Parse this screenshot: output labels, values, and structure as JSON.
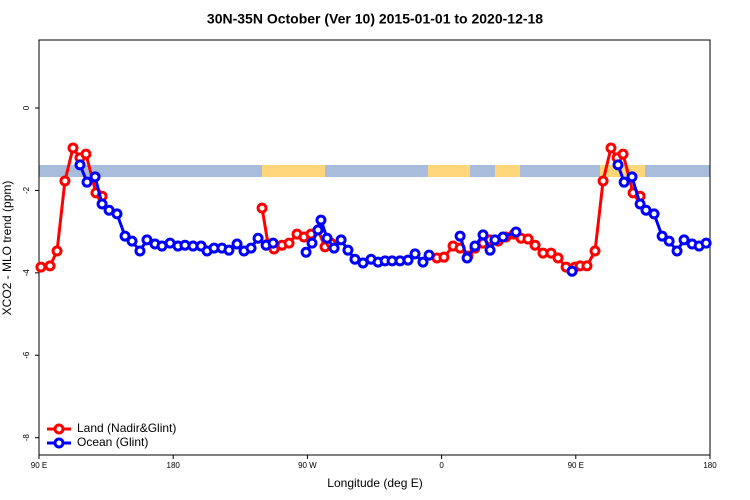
{
  "chart_data": {
    "type": "line",
    "title": "30N-35N October (Ver 10)   2015-01-01 to 2020-12-18",
    "xlabel": "Longitude (deg E)",
    "ylabel": "XCO2 - MLO trend (ppm)",
    "xlim": [
      90,
      540
    ],
    "ylim": [
      -8.42,
      1.65
    ],
    "xticks": [
      {
        "value": 90,
        "label": "90 E"
      },
      180,
      {
        "value": 270,
        "label": "90 W"
      },
      {
        "value": 360,
        "label": "0"
      },
      {
        "value": 450,
        "label": "90 E"
      },
      {
        "value": 540,
        "label": "180"
      }
    ],
    "yticks": [
      0,
      -2,
      -4,
      -6,
      -8
    ],
    "legend": "bottom-left",
    "series": [
      {
        "name": "Land (Nadir&Glint)",
        "color": "#ff0000",
        "x": [
          91.3,
          97.4,
          102.1,
          107.4,
          112.8,
          117.5,
          121.5,
          128.2,
          132.3,
          null,
          239.6,
          243.6,
          247.6,
          253.0,
          257.7,
          263.0,
          267.7,
          272.4,
          277.1,
          281.8,
          285.8,
          null,
          356.9,
          361.6,
          367.7,
          372.4,
          377.7,
          382.4,
          387.8,
          392.5,
          397.9,
          403.2,
          408.6,
          413.3,
          418.0,
          422.7,
          428.0,
          433.4,
          438.1,
          443.5,
          449.5,
          452.9,
          457.5,
          462.9,
          468.3,
          473.6,
          477.7,
          481.7,
          488.4,
          493.1
        ],
        "values": [
          -3.86,
          -3.83,
          -3.47,
          -1.77,
          -0.97,
          -1.21,
          -1.12,
          -2.06,
          -2.14,
          null,
          -2.43,
          -3.3,
          -3.42,
          -3.33,
          -3.28,
          -3.06,
          -3.13,
          -3.06,
          -2.96,
          -3.37,
          -3.28,
          null,
          -3.64,
          -3.62,
          -3.35,
          -3.4,
          -3.59,
          -3.4,
          -3.28,
          -3.2,
          -3.23,
          -3.13,
          -3.06,
          -3.16,
          -3.18,
          -3.33,
          -3.52,
          -3.52,
          -3.64,
          -3.86,
          -3.86,
          -3.83,
          -3.83,
          -3.47,
          -1.77,
          -0.97,
          -1.21,
          -1.12,
          -2.06,
          -2.14
        ]
      },
      {
        "name": "Ocean (Glint)",
        "color": "#0000ff",
        "x": [
          117.5,
          122.2,
          127.6,
          132.3,
          137.0,
          142.3,
          147.7,
          152.4,
          157.7,
          162.4,
          167.8,
          172.5,
          177.9,
          183.2,
          187.9,
          193.3,
          198.7,
          202.7,
          207.4,
          212.7,
          217.4,
          222.8,
          227.5,
          232.2,
          236.9,
          242.3,
          247.0,
          null,
          269.1,
          273.1,
          277.1,
          279.1,
          283.2,
          287.9,
          292.6,
          297.2,
          301.9,
          307.3,
          312.7,
          317.4,
          322.1,
          326.8,
          332.1,
          337.5,
          342.2,
          347.5,
          351.6,
          null,
          372.4,
          377.1,
          382.4,
          387.8,
          392.5,
          395.8,
          401.2,
          409.9,
          null,
          447.5,
          null,
          478.3,
          482.4,
          487.7,
          493.1,
          497.1,
          502.5,
          507.9,
          512.6,
          517.9,
          522.6,
          528.0,
          532.7,
          537.4
        ],
        "values": [
          -1.38,
          -1.8,
          -1.67,
          -2.33,
          -2.48,
          -2.57,
          -3.11,
          -3.23,
          -3.47,
          -3.2,
          -3.3,
          -3.35,
          -3.28,
          -3.35,
          -3.33,
          -3.35,
          -3.35,
          -3.47,
          -3.4,
          -3.4,
          -3.45,
          -3.3,
          -3.47,
          -3.4,
          -3.16,
          -3.33,
          -3.28,
          null,
          -3.5,
          -3.28,
          -2.96,
          -2.72,
          -3.16,
          -3.4,
          -3.2,
          -3.45,
          -3.67,
          -3.76,
          -3.67,
          -3.74,
          -3.71,
          -3.71,
          -3.71,
          -3.69,
          -3.54,
          -3.74,
          -3.57,
          null,
          -3.11,
          -3.64,
          -3.35,
          -3.08,
          -3.45,
          -3.2,
          -3.13,
          -3.01,
          null,
          -3.96,
          null,
          -1.38,
          -1.8,
          -1.67,
          -2.33,
          -2.48,
          -2.57,
          -3.11,
          -3.23,
          -3.47,
          -3.2,
          -3.3,
          -3.35,
          -3.28
        ]
      }
    ]
  }
}
